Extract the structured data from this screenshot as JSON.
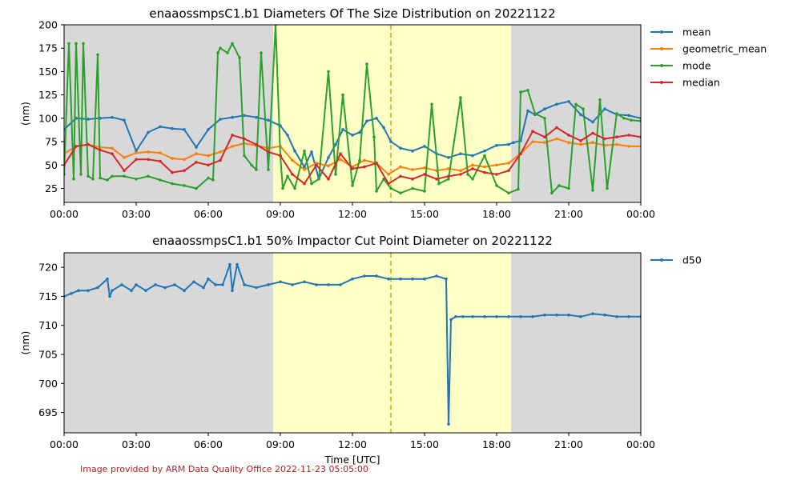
{
  "chart_data": [
    {
      "type": "line",
      "title": "enaaossmpsC1.b1 Diameters Of The Size Distribution on 20221122",
      "xlabel": "",
      "ylabel": "(nm)",
      "x_tick_labels": [
        "00:00",
        "03:00",
        "06:00",
        "09:00",
        "12:00",
        "15:00",
        "18:00",
        "21:00",
        "00:00"
      ],
      "x_tick_hours": [
        0,
        3,
        6,
        9,
        12,
        15,
        18,
        21,
        24
      ],
      "xlim_hours": [
        0,
        24
      ],
      "ylim": [
        10,
        200
      ],
      "y_ticks": [
        25,
        50,
        75,
        100,
        125,
        150,
        175,
        200
      ],
      "shaded_regions": [
        {
          "start_hour": 0,
          "end_hour": 8.7,
          "color": "#d8d8d8"
        },
        {
          "start_hour": 8.7,
          "end_hour": 18.6,
          "color": "#ffffc6"
        },
        {
          "start_hour": 18.6,
          "end_hour": 24,
          "color": "#d8d8d8"
        }
      ],
      "vline_hour": 13.6,
      "vline_color": "#c0b000",
      "legend_position": "outside-right",
      "series": [
        {
          "name": "mean",
          "color": "#1f77b4",
          "x": [
            0,
            0.5,
            1,
            1.5,
            2,
            2.5,
            3,
            3.5,
            4,
            4.5,
            5,
            5.5,
            6,
            6.5,
            7,
            7.5,
            8,
            8.5,
            9,
            9.3,
            9.6,
            10,
            10.3,
            10.6,
            11,
            11.3,
            11.6,
            12,
            12.3,
            12.6,
            13,
            13.3,
            13.6,
            14,
            14.5,
            15,
            15.5,
            16,
            16.5,
            17,
            17.5,
            18,
            18.5,
            18.7,
            19,
            19.3,
            19.6,
            20,
            20.5,
            21,
            21.5,
            22,
            22.5,
            23,
            23.5,
            24
          ],
          "y": [
            88,
            100,
            99,
            100,
            101,
            98,
            65,
            85,
            91,
            89,
            88,
            69,
            88,
            99,
            101,
            103,
            101,
            98,
            92,
            82,
            65,
            48,
            64,
            35,
            58,
            72,
            88,
            82,
            85,
            97,
            100,
            90,
            75,
            68,
            65,
            70,
            62,
            58,
            62,
            60,
            65,
            71,
            72,
            74,
            76,
            108,
            104,
            110,
            115,
            118,
            104,
            96,
            110,
            104,
            103,
            100
          ]
        },
        {
          "name": "geometric_mean",
          "color": "#ff7f0e",
          "x": [
            0,
            0.5,
            1,
            1.5,
            2,
            2.5,
            3,
            3.5,
            4,
            4.5,
            5,
            5.5,
            6,
            6.5,
            7,
            7.5,
            8,
            8.5,
            9,
            9.5,
            10,
            10.5,
            11,
            11.5,
            12,
            12.5,
            13,
            13.5,
            14,
            14.5,
            15,
            15.5,
            16,
            16.5,
            17,
            17.5,
            18,
            18.5,
            19,
            19.5,
            20,
            20.5,
            21,
            21.5,
            22,
            22.5,
            23,
            23.5,
            24
          ],
          "y": [
            62,
            70,
            72,
            69,
            68,
            58,
            63,
            64,
            63,
            57,
            56,
            62,
            60,
            64,
            70,
            73,
            71,
            68,
            70,
            55,
            45,
            52,
            49,
            56,
            48,
            55,
            52,
            40,
            48,
            45,
            47,
            44,
            46,
            44,
            50,
            48,
            50,
            52,
            62,
            75,
            74,
            78,
            74,
            72,
            74,
            71,
            72,
            70,
            70
          ]
        },
        {
          "name": "mode",
          "color": "#2ca02c",
          "x": [
            0,
            0.2,
            0.4,
            0.5,
            0.7,
            0.8,
            1,
            1.2,
            1.4,
            1.5,
            1.8,
            2,
            2.5,
            3,
            3.5,
            4,
            4.5,
            5,
            5.5,
            6,
            6.2,
            6.4,
            6.5,
            6.8,
            7,
            7.3,
            7.5,
            7.8,
            8,
            8.2,
            8.5,
            8.8,
            9,
            9.1,
            9.3,
            9.6,
            10,
            10.3,
            10.6,
            11,
            11.3,
            11.6,
            12,
            12.3,
            12.6,
            12.9,
            13,
            13.3,
            13.6,
            14,
            14.5,
            15,
            15.3,
            15.6,
            16,
            16.5,
            16.8,
            17,
            17.5,
            18,
            18.5,
            18.9,
            19,
            19.3,
            19.6,
            20,
            20.3,
            20.6,
            21,
            21.3,
            21.6,
            22,
            22.3,
            22.6,
            23,
            23.3,
            23.6,
            24
          ],
          "y": [
            40,
            180,
            35,
            180,
            40,
            180,
            38,
            35,
            168,
            36,
            34,
            38,
            38,
            35,
            38,
            34,
            30,
            28,
            25,
            36,
            34,
            170,
            175,
            170,
            180,
            165,
            60,
            50,
            45,
            170,
            45,
            200,
            60,
            25,
            38,
            25,
            65,
            30,
            35,
            150,
            40,
            125,
            28,
            55,
            158,
            80,
            22,
            35,
            25,
            20,
            25,
            22,
            115,
            30,
            35,
            122,
            40,
            35,
            60,
            28,
            20,
            24,
            128,
            130,
            105,
            100,
            20,
            28,
            25,
            115,
            110,
            23,
            120,
            25,
            105,
            100,
            98,
            97
          ]
        },
        {
          "name": "median",
          "color": "#d62728",
          "x": [
            0,
            0.5,
            1,
            1.5,
            2,
            2.5,
            3,
            3.5,
            4,
            4.5,
            5,
            5.5,
            6,
            6.5,
            7,
            7.5,
            8,
            8.5,
            9,
            9.5,
            10,
            10.5,
            11,
            11.5,
            12,
            12.5,
            13,
            13.5,
            14,
            14.5,
            15,
            15.5,
            16,
            16.5,
            17,
            17.5,
            18,
            18.5,
            19,
            19.5,
            20,
            20.5,
            21,
            21.5,
            22,
            22.5,
            23,
            23.5,
            24
          ],
          "y": [
            50,
            70,
            72,
            66,
            62,
            44,
            56,
            56,
            54,
            42,
            44,
            53,
            50,
            55,
            82,
            78,
            72,
            64,
            60,
            40,
            30,
            50,
            35,
            62,
            46,
            48,
            52,
            30,
            38,
            35,
            40,
            35,
            38,
            40,
            46,
            42,
            40,
            44,
            62,
            86,
            80,
            90,
            82,
            76,
            84,
            78,
            80,
            82,
            80
          ]
        }
      ]
    },
    {
      "type": "line",
      "title": "enaaossmpsC1.b1 50% Impactor Cut Point Diameter on 20221122",
      "xlabel": "Time [UTC]",
      "ylabel": "(nm)",
      "x_tick_labels": [
        "00:00",
        "03:00",
        "06:00",
        "09:00",
        "12:00",
        "15:00",
        "18:00",
        "21:00",
        "00:00"
      ],
      "x_tick_hours": [
        0,
        3,
        6,
        9,
        12,
        15,
        18,
        21,
        24
      ],
      "xlim_hours": [
        0,
        24
      ],
      "ylim": [
        691.5,
        722.5
      ],
      "y_ticks": [
        695,
        700,
        705,
        710,
        715,
        720
      ],
      "shaded_regions": [
        {
          "start_hour": 0,
          "end_hour": 8.7,
          "color": "#d8d8d8"
        },
        {
          "start_hour": 8.7,
          "end_hour": 18.6,
          "color": "#ffffc6"
        },
        {
          "start_hour": 18.6,
          "end_hour": 24,
          "color": "#d8d8d8"
        }
      ],
      "vline_hour": 13.6,
      "vline_color": "#c0b000",
      "legend_position": "outside-right",
      "series": [
        {
          "name": "d50",
          "color": "#1f77b4",
          "x": [
            0,
            0.3,
            0.6,
            1,
            1.4,
            1.8,
            1.9,
            2,
            2.4,
            2.8,
            3,
            3.4,
            3.8,
            4.2,
            4.6,
            5,
            5.4,
            5.8,
            6,
            6.3,
            6.6,
            6.9,
            7,
            7.2,
            7.5,
            8,
            8.5,
            9,
            9.5,
            10,
            10.5,
            11,
            11.5,
            12,
            12.5,
            13,
            13.5,
            14,
            14.5,
            15,
            15.5,
            15.9,
            16,
            16.1,
            16.3,
            16.6,
            17,
            17.5,
            18,
            18.5,
            19,
            19.5,
            20,
            20.5,
            21,
            21.5,
            22,
            22.5,
            23,
            23.5,
            24
          ],
          "y": [
            715,
            715.5,
            716,
            716,
            716.5,
            718,
            715,
            716,
            717,
            716,
            717,
            716,
            717,
            716.5,
            717,
            716,
            717.5,
            716.5,
            718,
            717,
            717,
            720.5,
            716,
            720.5,
            717,
            716.5,
            717,
            717.5,
            717,
            717.5,
            717,
            717,
            717,
            718,
            718.5,
            718.5,
            718,
            718,
            718,
            718,
            718.5,
            718,
            693,
            711,
            711.5,
            711.5,
            711.5,
            711.5,
            711.5,
            711.5,
            711.5,
            711.5,
            711.8,
            711.8,
            711.8,
            711.5,
            712,
            711.8,
            711.5,
            711.5,
            711.5
          ]
        }
      ]
    }
  ],
  "footer": "Image provided by ARM Data Quality Office 2022-11-23 05:05:00"
}
